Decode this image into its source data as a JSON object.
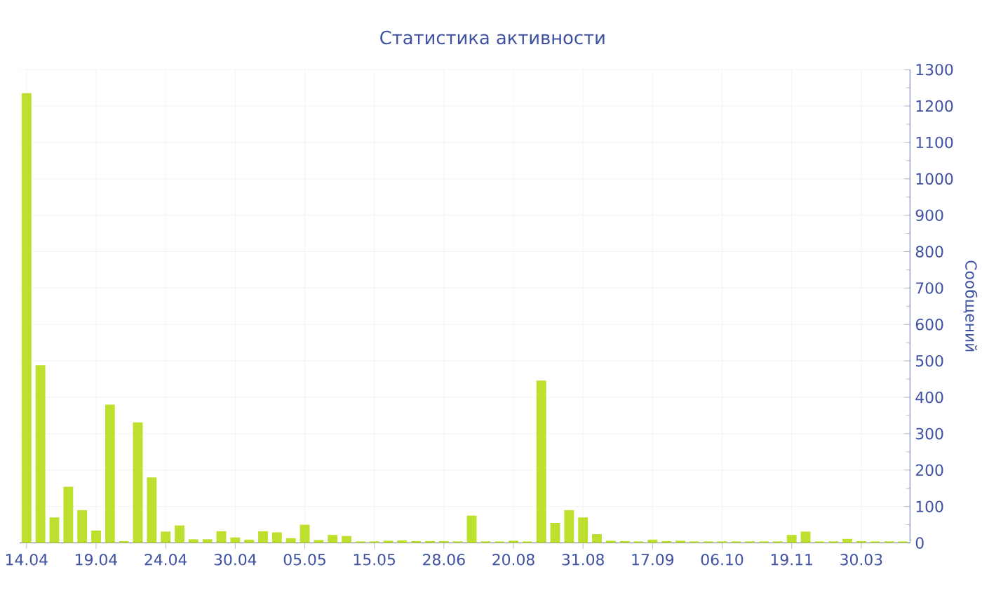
{
  "chart_data": {
    "type": "bar",
    "title": "Статистика активности",
    "ylabel": "Сообщений",
    "categories": [
      "14.04",
      null,
      null,
      null,
      null,
      "19.04",
      null,
      null,
      null,
      null,
      "24.04",
      null,
      null,
      null,
      null,
      "30.04",
      null,
      null,
      null,
      null,
      "05.05",
      null,
      null,
      null,
      null,
      "15.05",
      null,
      null,
      null,
      null,
      "28.06",
      null,
      null,
      null,
      null,
      "20.08",
      null,
      null,
      null,
      null,
      "31.08",
      null,
      null,
      null,
      null,
      "17.09",
      null,
      null,
      null,
      null,
      "06.10",
      null,
      null,
      null,
      null,
      "19.11",
      null,
      null,
      null,
      null,
      "30.03",
      null,
      null,
      null
    ],
    "values": [
      1235,
      488,
      70,
      154,
      90,
      34,
      380,
      5,
      331,
      180,
      31,
      48,
      10,
      10,
      32,
      15,
      9,
      32,
      29,
      13,
      50,
      8,
      22,
      19,
      4,
      4,
      6,
      7,
      5,
      5,
      5,
      4,
      75,
      4,
      4,
      6,
      4,
      446,
      55,
      90,
      70,
      24,
      6,
      5,
      4,
      9,
      5,
      6,
      4,
      4,
      4,
      4,
      4,
      4,
      4,
      22,
      31,
      4,
      4,
      11,
      5,
      4,
      4,
      4
    ],
    "color": "#bde02e",
    "ylim": [
      0,
      1300
    ],
    "yticks": [
      0,
      100,
      200,
      300,
      400,
      500,
      600,
      700,
      800,
      900,
      1000,
      1100,
      1200,
      1300
    ],
    "grid": true
  }
}
